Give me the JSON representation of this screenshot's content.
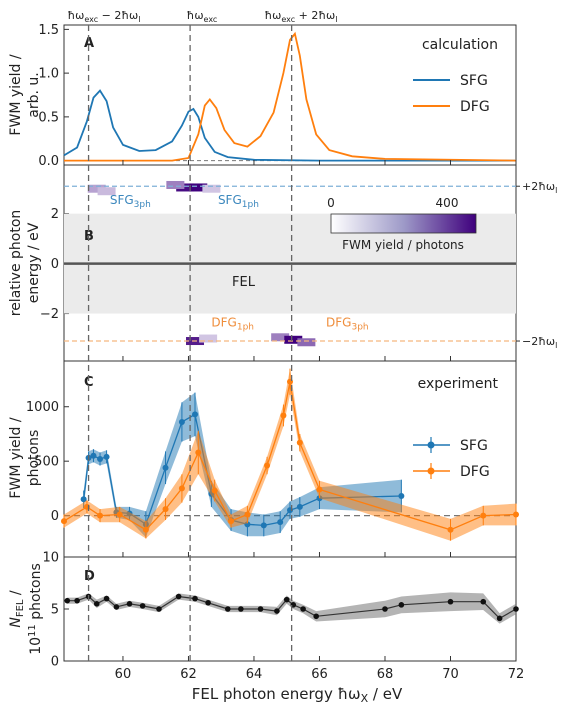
{
  "top_labels": {
    "left": {
      "main": "ħω",
      "sub": "exc",
      "rest": " − 2ħω",
      "sub2": "l"
    },
    "mid": {
      "main": "ħω",
      "sub": "exc"
    },
    "right": {
      "main": "ħω",
      "sub": "exc",
      "rest": " + 2ħω",
      "sub2": "l"
    }
  },
  "x_axis": {
    "label": "FEL photon energy ħω",
    "label_sub": "X",
    "label_unit": " / eV",
    "xlim": [
      58.2,
      72
    ],
    "ticks": [
      60,
      62,
      64,
      66,
      68,
      70,
      72
    ],
    "vlines": [
      58.95,
      62.05,
      65.15
    ]
  },
  "panels": {
    "A": {
      "letter": "A",
      "note": "calculation",
      "ylabel_1": "FWM yield /",
      "ylabel_2": "arb. u.",
      "ylim": [
        -0.05,
        1.55
      ],
      "yticks": [
        0.0,
        0.5,
        1.0,
        1.5
      ]
    },
    "B": {
      "letter": "B",
      "ylabel_1": "relative photon",
      "ylabel_2": "energy / eV",
      "ylim": [
        -3.9,
        3.95
      ],
      "yticks": [
        -2,
        0,
        2
      ],
      "fel_label": "FEL",
      "right_labels": [
        {
          "pre": "+2ħω",
          "sub": "l",
          "y": 3.1
        },
        {
          "pre": "−2ħω",
          "sub": "l",
          "y": -3.1
        }
      ],
      "annotations": [
        {
          "pre": "SFG",
          "sub": "3ph",
          "x": 59.6,
          "y": 2.55,
          "color": "#3b87bd"
        },
        {
          "pre": "SFG",
          "sub": "1ph",
          "x": 62.9,
          "y": 2.55,
          "color": "#3b87bd"
        },
        {
          "pre": "DFG",
          "sub": "1ph",
          "x": 62.7,
          "y": -2.35,
          "color": "#ef8d3b"
        },
        {
          "pre": "DFG",
          "sub": "3ph",
          "x": 66.2,
          "y": -2.35,
          "color": "#ef8d3b"
        }
      ],
      "colorbar": {
        "min_label": "0",
        "max_label": "400",
        "title": "FWM yield / photons"
      }
    },
    "C": {
      "letter": "C",
      "note": "experiment",
      "ylabel_1": "FWM yield /",
      "ylabel_2": "photons",
      "ylim": [
        -380,
        1420
      ],
      "yticks": [
        0,
        500,
        1000
      ]
    },
    "D": {
      "letter": "D",
      "ylabel_1": "N",
      "ylabel_1_sub": "FEL",
      "ylabel_1_rest": " /",
      "ylabel_2_pre": "10",
      "ylabel_2_sup": "11",
      "ylabel_2_rest": " photons",
      "ylim": [
        0,
        10
      ],
      "yticks": [
        0,
        5,
        10
      ]
    }
  },
  "chart_data": [
    {
      "panel": "A",
      "type": "line",
      "series": [
        {
          "name": "SFG",
          "color": "#1f77b4",
          "x": [
            58.2,
            58.6,
            58.9,
            59.1,
            59.3,
            59.5,
            59.7,
            60.0,
            60.5,
            61.0,
            61.5,
            61.8,
            62.0,
            62.15,
            62.3,
            62.5,
            62.8,
            63.2,
            64.0,
            66.0,
            72.0
          ],
          "y": [
            0.06,
            0.15,
            0.45,
            0.72,
            0.8,
            0.68,
            0.38,
            0.18,
            0.11,
            0.12,
            0.22,
            0.4,
            0.56,
            0.59,
            0.5,
            0.26,
            0.1,
            0.04,
            0.01,
            0.0,
            0.0
          ]
        },
        {
          "name": "DFG",
          "color": "#ff7f0e",
          "x": [
            58.2,
            61.5,
            62.0,
            62.3,
            62.5,
            62.65,
            62.85,
            63.1,
            63.4,
            63.8,
            64.2,
            64.6,
            64.9,
            65.1,
            65.25,
            65.4,
            65.6,
            65.9,
            66.3,
            67.0,
            68.0,
            72.0
          ],
          "y": [
            0.0,
            0.0,
            0.03,
            0.3,
            0.63,
            0.7,
            0.6,
            0.35,
            0.2,
            0.16,
            0.28,
            0.55,
            1.0,
            1.38,
            1.45,
            1.2,
            0.7,
            0.3,
            0.12,
            0.05,
            0.02,
            0.0
          ]
        }
      ],
      "legend_position": "right"
    },
    {
      "panel": "B",
      "type": "heatmap",
      "zlim": [
        0,
        400
      ],
      "fel_band": [
        -2.0,
        2.0
      ],
      "spots": [
        {
          "x": 59.2,
          "y": 3.0,
          "z": 120
        },
        {
          "x": 59.5,
          "y": 2.9,
          "z": 80
        },
        {
          "x": 61.9,
          "y": 3.05,
          "z": 380
        },
        {
          "x": 62.3,
          "y": 3.05,
          "z": 400
        },
        {
          "x": 61.6,
          "y": 3.15,
          "z": 180
        },
        {
          "x": 62.7,
          "y": 3.0,
          "z": 60
        },
        {
          "x": 62.2,
          "y": -3.1,
          "z": 350
        },
        {
          "x": 62.6,
          "y": -3.0,
          "z": 60
        },
        {
          "x": 64.8,
          "y": -2.95,
          "z": 180
        },
        {
          "x": 65.2,
          "y": -3.05,
          "z": 400
        },
        {
          "x": 65.6,
          "y": -3.15,
          "z": 220
        }
      ],
      "reference_lines": [
        3.1,
        -3.1
      ]
    },
    {
      "panel": "C",
      "type": "line",
      "legend_position": "right",
      "series": [
        {
          "name": "SFG",
          "color": "#1f77b4",
          "x": [
            58.8,
            58.95,
            59.1,
            59.3,
            59.5,
            59.8,
            60.2,
            60.7,
            61.3,
            61.8,
            62.2,
            62.7,
            63.3,
            63.8,
            64.3,
            64.8,
            65.1,
            65.4,
            66.0,
            68.5
          ],
          "y": [
            150,
            530,
            550,
            520,
            540,
            30,
            20,
            -80,
            440,
            860,
            930,
            200,
            -40,
            -80,
            -90,
            -60,
            50,
            80,
            160,
            180
          ],
          "err": [
            80,
            60,
            60,
            60,
            60,
            50,
            60,
            120,
            150,
            180,
            200,
            120,
            100,
            110,
            100,
            100,
            80,
            90,
            100,
            150
          ]
        },
        {
          "name": "DFG",
          "color": "#ff7f0e",
          "x": [
            58.2,
            58.9,
            59.3,
            59.9,
            60.7,
            61.3,
            61.8,
            62.3,
            62.8,
            63.3,
            63.8,
            64.4,
            64.9,
            65.1,
            65.4,
            66.0,
            70.0,
            71.0,
            72.0
          ],
          "y": [
            -50,
            80,
            0,
            10,
            -130,
            60,
            250,
            580,
            230,
            -50,
            10,
            460,
            920,
            1230,
            670,
            240,
            -130,
            0,
            10
          ],
          "err": [
            60,
            60,
            60,
            70,
            80,
            100,
            130,
            200,
            100,
            60,
            80,
            80,
            100,
            120,
            80,
            80,
            100,
            90,
            100
          ]
        }
      ]
    },
    {
      "panel": "D",
      "type": "line",
      "series": [
        {
          "name": "",
          "color": "#222222",
          "x": [
            58.3,
            58.6,
            58.95,
            59.2,
            59.5,
            59.8,
            60.2,
            60.6,
            61.1,
            61.7,
            62.2,
            62.6,
            63.2,
            63.6,
            64.2,
            64.7,
            65.0,
            65.2,
            65.5,
            65.9,
            68.0,
            68.5,
            70.0,
            71.0,
            71.5,
            72.0
          ],
          "y": [
            5.8,
            5.8,
            6.2,
            5.5,
            6.0,
            5.2,
            5.5,
            5.3,
            5.0,
            6.2,
            6.0,
            5.6,
            5.0,
            5.0,
            5.0,
            4.8,
            5.9,
            5.4,
            5.0,
            4.3,
            5.0,
            5.4,
            5.7,
            5.7,
            4.1,
            5.0
          ],
          "err": [
            0.3,
            0.3,
            0.3,
            0.4,
            0.3,
            0.3,
            0.3,
            0.3,
            0.3,
            0.3,
            0.3,
            0.3,
            0.3,
            0.3,
            0.3,
            0.4,
            0.4,
            0.4,
            0.4,
            0.5,
            0.8,
            0.8,
            0.9,
            0.8,
            0.5,
            0.5
          ]
        }
      ]
    }
  ]
}
